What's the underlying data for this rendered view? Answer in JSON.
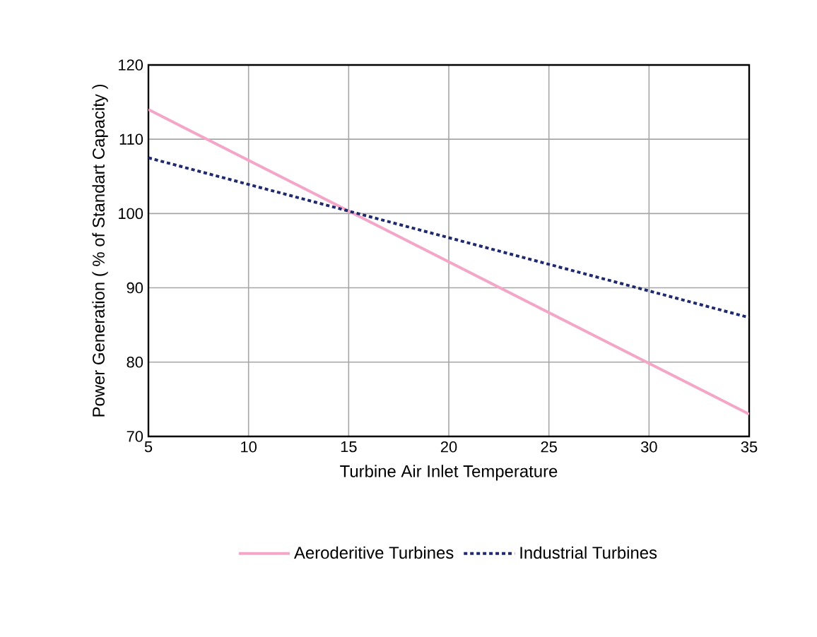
{
  "chart_data": {
    "type": "line",
    "xlabel": "Turbine Air Inlet Temperature",
    "ylabel": "Power Generation ( % of Standart Capacity )",
    "x": [
      5,
      35
    ],
    "series": [
      {
        "name": "Aeroderitive Turbines",
        "color": "#f4a6c8",
        "values": [
          114,
          73
        ],
        "line_style": "solid"
      },
      {
        "name": "Industrial Turbines",
        "color": "#1f2a6e",
        "values": [
          107.5,
          86
        ],
        "line_style": "dotted"
      }
    ],
    "xlim": [
      5,
      35
    ],
    "ylim": [
      70,
      120
    ],
    "xticks": [
      5,
      10,
      15,
      20,
      25,
      30,
      35
    ],
    "yticks": [
      70,
      80,
      90,
      100,
      110,
      120
    ],
    "grid": true,
    "legend": "bottom",
    "marker": "none"
  }
}
